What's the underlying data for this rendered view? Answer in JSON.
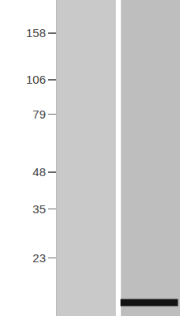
{
  "chart_data": {
    "type": "blot",
    "categories": [
      null,
      null
    ],
    "values": [
      null,
      15.7
    ],
    "color": "#141414",
    "log": "y",
    "ylim": [
      14,
      210
    ],
    "yticks": [
      158,
      106,
      79,
      48,
      35,
      23
    ],
    "grid": false,
    "tick_labels": "y"
  }
}
